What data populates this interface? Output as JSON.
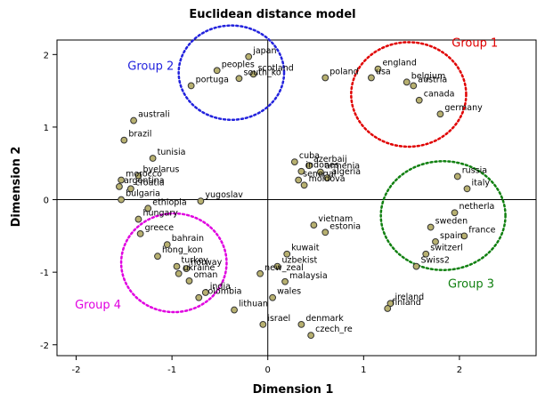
{
  "chart_data": {
    "type": "scatter",
    "title": "Euclidean distance model",
    "xlabel": "Dimension 1",
    "ylabel": "Dimension 2",
    "xlim": [
      -2.2,
      2.8
    ],
    "ylim": [
      -2.15,
      2.2
    ],
    "xticks": [
      -2,
      -1,
      0,
      1,
      2
    ],
    "yticks": [
      -2,
      -1,
      0,
      1,
      2
    ],
    "reference_lines": {
      "x": 0,
      "y": 0
    },
    "marker_color": "#b7b070",
    "points": [
      {
        "label": "japan",
        "x": -0.2,
        "y": 1.97
      },
      {
        "label": "peoples",
        "x": -0.53,
        "y": 1.78
      },
      {
        "label": "scotland",
        "x": -0.15,
        "y": 1.73
      },
      {
        "label": "south_ko",
        "x": -0.3,
        "y": 1.67
      },
      {
        "label": "portuga",
        "x": -0.8,
        "y": 1.57
      },
      {
        "label": "poland",
        "x": 0.6,
        "y": 1.68
      },
      {
        "label": "england",
        "x": 1.15,
        "y": 1.8
      },
      {
        "label": "usa",
        "x": 1.08,
        "y": 1.68
      },
      {
        "label": "belgium",
        "x": 1.45,
        "y": 1.62
      },
      {
        "label": "austria",
        "x": 1.52,
        "y": 1.57
      },
      {
        "label": "canada",
        "x": 1.58,
        "y": 1.37
      },
      {
        "label": "germany",
        "x": 1.8,
        "y": 1.18
      },
      {
        "label": "australi",
        "x": -1.4,
        "y": 1.09
      },
      {
        "label": "brazil",
        "x": -1.5,
        "y": 0.82
      },
      {
        "label": "tunisia",
        "x": -1.2,
        "y": 0.57
      },
      {
        "label": "byelarus",
        "x": -1.35,
        "y": 0.33
      },
      {
        "label": "morocco",
        "x": -1.53,
        "y": 0.27
      },
      {
        "label": "argentina",
        "x": -1.55,
        "y": 0.18
      },
      {
        "label": "croatia",
        "x": -1.43,
        "y": 0.15
      },
      {
        "label": "bulgaria",
        "x": -1.53,
        "y": 0.0
      },
      {
        "label": "ethiopia",
        "x": -1.25,
        "y": -0.12
      },
      {
        "label": "yugoslav",
        "x": -0.7,
        "y": -0.02
      },
      {
        "label": "hungary",
        "x": -1.35,
        "y": -0.27
      },
      {
        "label": "bahrain",
        "x": -1.05,
        "y": -0.62
      },
      {
        "label": "greece",
        "x": -1.33,
        "y": -0.47
      },
      {
        "label": "hong_kon",
        "x": -1.15,
        "y": -0.78
      },
      {
        "label": "turkey",
        "x": -0.95,
        "y": -0.92
      },
      {
        "label": "norway",
        "x": -0.85,
        "y": -0.95
      },
      {
        "label": "ukraine",
        "x": -0.93,
        "y": -1.02
      },
      {
        "label": "oman",
        "x": -0.82,
        "y": -1.12
      },
      {
        "label": "colombia",
        "x": -0.72,
        "y": -1.35
      },
      {
        "label": "india",
        "x": -0.65,
        "y": -1.28
      },
      {
        "label": "cuba",
        "x": 0.28,
        "y": 0.52
      },
      {
        "label": "azerbaij",
        "x": 0.43,
        "y": 0.47
      },
      {
        "label": "indones",
        "x": 0.35,
        "y": 0.39
      },
      {
        "label": "armenia",
        "x": 0.55,
        "y": 0.38
      },
      {
        "label": "senegal",
        "x": 0.32,
        "y": 0.27
      },
      {
        "label": "algeria",
        "x": 0.62,
        "y": 0.3
      },
      {
        "label": "moldova",
        "x": 0.38,
        "y": 0.2
      },
      {
        "label": "vietnam",
        "x": 0.48,
        "y": -0.35
      },
      {
        "label": "kuwait",
        "x": 0.2,
        "y": -0.75
      },
      {
        "label": "estonia",
        "x": 0.6,
        "y": -0.45
      },
      {
        "label": "uzbekist",
        "x": 0.1,
        "y": -0.92
      },
      {
        "label": "new_zeal",
        "x": -0.08,
        "y": -1.02
      },
      {
        "label": "malaysia",
        "x": 0.18,
        "y": -1.13
      },
      {
        "label": "wales",
        "x": 0.05,
        "y": -1.35
      },
      {
        "label": "lithuan",
        "x": -0.35,
        "y": -1.52
      },
      {
        "label": "denmark",
        "x": 0.35,
        "y": -1.72
      },
      {
        "label": "israel",
        "x": -0.05,
        "y": -1.72
      },
      {
        "label": "czech_re",
        "x": 0.45,
        "y": -1.87
      },
      {
        "label": "ireland",
        "x": 1.28,
        "y": -1.43
      },
      {
        "label": "finland",
        "x": 1.25,
        "y": -1.5
      },
      {
        "label": "russia",
        "x": 1.98,
        "y": 0.32
      },
      {
        "label": "italy",
        "x": 2.08,
        "y": 0.15
      },
      {
        "label": "netherla",
        "x": 1.95,
        "y": -0.18
      },
      {
        "label": "sweden",
        "x": 1.7,
        "y": -0.38
      },
      {
        "label": "france",
        "x": 2.05,
        "y": -0.5
      },
      {
        "label": "spain",
        "x": 1.75,
        "y": -0.58
      },
      {
        "label": "switzerl",
        "x": 1.65,
        "y": -0.75
      },
      {
        "label": "Swiss2",
        "x": 1.55,
        "y": -0.92
      }
    ],
    "groups": [
      {
        "label": "Group 1",
        "color": "#e00000",
        "cx": 1.47,
        "cy": 1.45,
        "rx": 0.6,
        "ry": 0.72
      },
      {
        "label": "Group 2",
        "color": "#2222dd",
        "cx": -0.38,
        "cy": 1.75,
        "rx": 0.55,
        "ry": 0.65
      },
      {
        "label": "Group 3",
        "color": "#108010",
        "cx": 1.83,
        "cy": -0.22,
        "rx": 0.65,
        "ry": 0.75
      },
      {
        "label": "Group 4",
        "color": "#e000e0",
        "cx": -0.98,
        "cy": -0.87,
        "rx": 0.55,
        "ry": 0.68
      }
    ]
  }
}
